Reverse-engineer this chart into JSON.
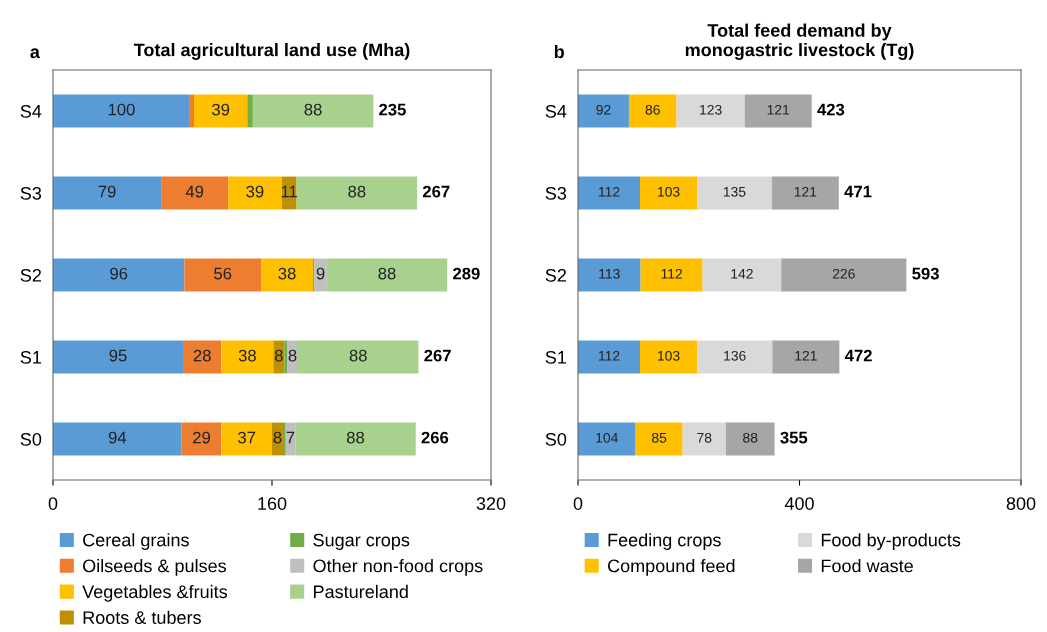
{
  "chart_data": [
    {
      "type": "bar",
      "orientation": "horizontal",
      "stacked": true,
      "title": "Total agricultural land use (Mha)",
      "annotations": [
        "a"
      ],
      "categories": [
        "S4",
        "S3",
        "S2",
        "S1",
        "S0"
      ],
      "xlim": [
        0,
        320
      ],
      "xticks": [
        0,
        160,
        320
      ],
      "grid": false,
      "legend": "bottom",
      "series": [
        {
          "name": "Cereal grains",
          "color": "#5b9bd5",
          "values": [
            100,
            79,
            96,
            95,
            94
          ],
          "value_labels": [
            "100",
            "79",
            "96",
            "95",
            "94"
          ]
        },
        {
          "name": "Oilseeds & pulses",
          "color": "#ed7d31",
          "values": [
            3,
            49,
            56,
            28,
            29
          ],
          "value_labels": [
            null,
            "49",
            "56",
            "28",
            "29"
          ]
        },
        {
          "name": "Vegetables &fruits",
          "color": "#ffc000",
          "values": [
            39,
            39,
            38,
            38,
            37
          ],
          "value_labels": [
            "39",
            "39",
            "38",
            "38",
            "37"
          ]
        },
        {
          "name": "Roots & tubers",
          "color": "#bf9000",
          "values": [
            0,
            11,
            0,
            8,
            8
          ],
          "value_labels": [
            null,
            "11",
            null,
            "8",
            "8"
          ]
        },
        {
          "name": "Sugar crops",
          "color": "#70ad47",
          "values": [
            4,
            0,
            1,
            2,
            2
          ],
          "value_labels": [
            null,
            null,
            null,
            null,
            null
          ]
        },
        {
          "name": "Other non-food crops",
          "color": "#bfbfbf",
          "values": [
            0,
            0,
            9,
            8,
            7
          ],
          "value_labels": [
            null,
            null,
            "9",
            "8",
            "7"
          ]
        },
        {
          "name": "Pastureland",
          "color": "#a9d18e",
          "values": [
            88,
            88,
            88,
            88,
            88
          ],
          "value_labels": [
            "88",
            "88",
            "88",
            "88",
            "88"
          ]
        }
      ],
      "totals": [
        "235",
        "267",
        "289",
        "267",
        "266"
      ]
    },
    {
      "type": "bar",
      "orientation": "horizontal",
      "stacked": true,
      "title": "Total feed demand by\nmonogastric livestock (Tg)",
      "annotations": [
        "b"
      ],
      "categories": [
        "S4",
        "S3",
        "S2",
        "S1",
        "S0"
      ],
      "xlim": [
        0,
        800
      ],
      "xticks": [
        0,
        400,
        800
      ],
      "grid": false,
      "legend": "bottom",
      "data_labels": true,
      "series": [
        {
          "name": "Feeding crops",
          "color": "#5b9bd5",
          "values": [
            92,
            112,
            113,
            112,
            104
          ]
        },
        {
          "name": "Compound feed",
          "color": "#ffc000",
          "values": [
            86,
            103,
            112,
            103,
            85
          ]
        },
        {
          "name": "Food by-products",
          "color": "#d9d9d9",
          "values": [
            123,
            135,
            142,
            136,
            78
          ]
        },
        {
          "name": "Food waste",
          "color": "#a6a6a6",
          "values": [
            121,
            121,
            226,
            121,
            88
          ]
        }
      ],
      "totals": [
        "423",
        "471",
        "593",
        "472",
        "355"
      ]
    }
  ]
}
